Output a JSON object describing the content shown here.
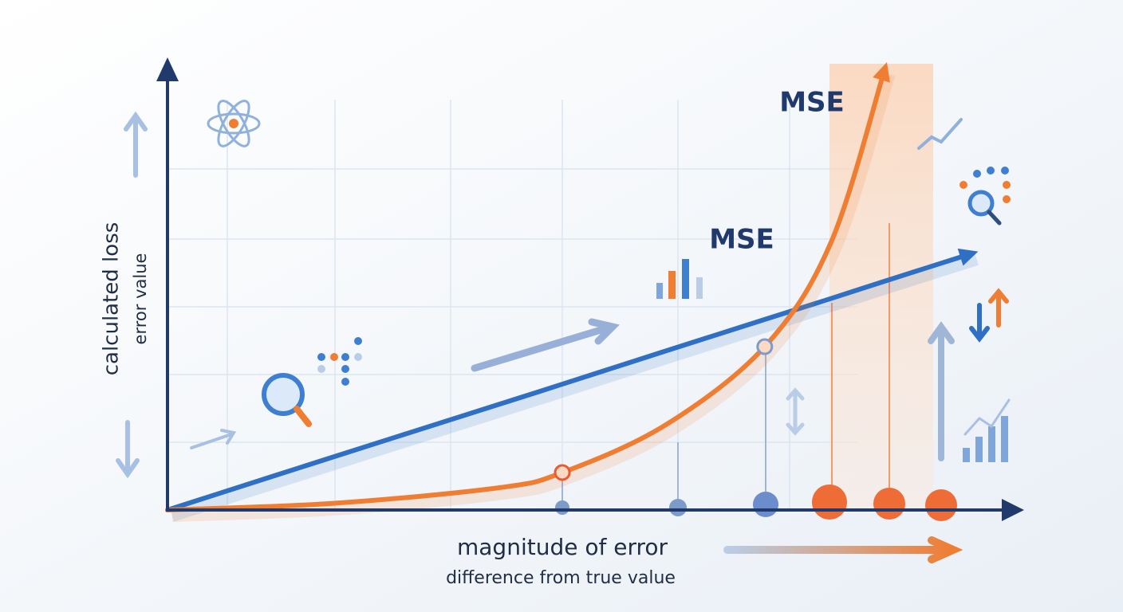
{
  "chart_data": {
    "type": "line",
    "y_label": "calculated loss",
    "y_sublabel": "error value",
    "x_label": "magnitude of error",
    "x_sublabel": "difference from true value",
    "x": [
      0,
      2,
      4,
      4.76,
      6,
      7.2,
      8,
      8.65,
      9.7
    ],
    "xlim": [
      0,
      10
    ],
    "ylim": [
      0,
      10
    ],
    "series": [
      {
        "name": "MSE",
        "color": "#2f6fc4",
        "values": [
          0,
          1.19,
          2.37,
          2.82,
          3.56,
          4.27,
          4.74,
          5.13,
          5.75
        ]
      },
      {
        "name": "MSE",
        "color": "#ef7d32",
        "values": [
          0,
          0.15,
          0.5,
          0.84,
          1.9,
          3.66,
          6,
          9.9,
          null
        ]
      }
    ]
  }
}
